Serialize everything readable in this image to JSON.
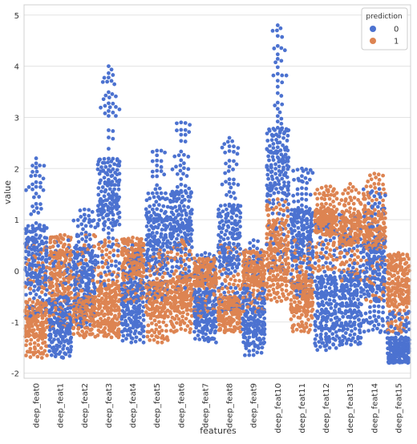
{
  "chart_data": {
    "type": "scatter",
    "subtype": "swarm",
    "xlabel": "features",
    "ylabel": "value",
    "categories": [
      "deep_feat0",
      "deep_feat1",
      "deep_feat2",
      "deep_feat3",
      "deep_feat4",
      "deep_feat5",
      "deep_feat6",
      "deep_feat7",
      "deep_feat8",
      "deep_feat9",
      "deep_feat10",
      "deep_feat11",
      "deep_feat12",
      "deep_feat13",
      "deep_feat14",
      "deep_feat15"
    ],
    "ylim": [
      -2.1,
      5.2
    ],
    "yticks": [
      -2,
      -1,
      0,
      1,
      2,
      3,
      4,
      5
    ],
    "grid": true,
    "legend": {
      "title": "prediction",
      "placement": "top-right",
      "entries": [
        {
          "label": "0",
          "color": "#4c72d0"
        },
        {
          "label": "1",
          "color": "#dd8452"
        }
      ]
    },
    "series": [
      {
        "name": "0",
        "color": "#4c72d0",
        "stats": [
          {
            "min": -0.9,
            "q1": -0.3,
            "median": 0.3,
            "q3": 0.9,
            "max": 2.2
          },
          {
            "min": -1.7,
            "q1": -1.4,
            "median": -1.0,
            "q3": -0.5,
            "max": 0.6
          },
          {
            "min": -1.1,
            "q1": -0.6,
            "median": 0.0,
            "q3": 0.5,
            "max": 1.2
          },
          {
            "min": -0.3,
            "q1": 0.8,
            "median": 1.5,
            "q3": 2.2,
            "max": 4.0
          },
          {
            "min": -1.4,
            "q1": -1.1,
            "median": -0.7,
            "q3": -0.2,
            "max": 0.5
          },
          {
            "min": -0.6,
            "q1": 0.0,
            "median": 0.7,
            "q3": 1.3,
            "max": 2.35
          },
          {
            "min": -0.4,
            "q1": 0.4,
            "median": 1.0,
            "q3": 1.6,
            "max": 2.9
          },
          {
            "min": -1.4,
            "q1": -1.1,
            "median": -0.8,
            "q3": -0.4,
            "max": 0.35
          },
          {
            "min": -0.8,
            "q1": 0.0,
            "median": 0.6,
            "q3": 1.3,
            "max": 2.6
          },
          {
            "min": -1.65,
            "q1": -1.3,
            "median": -0.9,
            "q3": -0.4,
            "max": 0.6
          },
          {
            "min": 0.0,
            "q1": 1.3,
            "median": 2.1,
            "q3": 2.8,
            "max": 4.8
          },
          {
            "min": -0.5,
            "q1": 0.2,
            "median": 0.7,
            "q3": 1.2,
            "max": 2.0
          },
          {
            "min": -1.55,
            "q1": -1.2,
            "median": -0.7,
            "q3": -0.1,
            "max": 0.9
          },
          {
            "min": -1.45,
            "q1": -1.1,
            "median": -0.6,
            "q3": 0.0,
            "max": 1.1
          },
          {
            "min": -1.2,
            "q1": -0.6,
            "median": 0.0,
            "q3": 0.6,
            "max": 1.6
          },
          {
            "min": -1.8,
            "q1": -1.75,
            "median": -1.6,
            "q3": -1.3,
            "max": -0.8
          }
        ]
      },
      {
        "name": "1",
        "color": "#dd8452",
        "stats": [
          {
            "min": -1.7,
            "q1": -1.3,
            "median": -1.0,
            "q3": -0.6,
            "max": 0.5
          },
          {
            "min": -1.1,
            "q1": -0.5,
            "median": 0.0,
            "q3": 0.4,
            "max": 0.7
          },
          {
            "min": -1.3,
            "q1": -1.0,
            "median": -0.8,
            "q3": -0.5,
            "max": 0.7
          },
          {
            "min": -1.3,
            "q1": -1.1,
            "median": -0.8,
            "q3": -0.2,
            "max": 0.6
          },
          {
            "min": -0.6,
            "q1": -0.1,
            "median": 0.2,
            "q3": 0.45,
            "max": 0.65
          },
          {
            "min": -1.4,
            "q1": -0.9,
            "median": -0.5,
            "q3": -0.2,
            "max": 0.4
          },
          {
            "min": -1.2,
            "q1": -0.8,
            "median": -0.5,
            "q3": -0.1,
            "max": 0.6
          },
          {
            "min": -0.9,
            "q1": -0.3,
            "median": 0.0,
            "q3": 0.1,
            "max": 0.25
          },
          {
            "min": -1.2,
            "q1": -1.0,
            "median": -0.8,
            "q3": -0.5,
            "max": 0.5
          },
          {
            "min": -0.8,
            "q1": -0.3,
            "median": 0.0,
            "q3": 0.2,
            "max": 0.4
          },
          {
            "min": -0.6,
            "q1": -0.2,
            "median": 0.3,
            "q3": 0.9,
            "max": 1.4
          },
          {
            "min": -1.2,
            "q1": -0.8,
            "median": -0.5,
            "q3": -0.1,
            "max": 0.6
          },
          {
            "min": 0.0,
            "q1": 0.7,
            "median": 1.0,
            "q3": 1.2,
            "max": 1.65
          },
          {
            "min": -0.2,
            "q1": 0.5,
            "median": 0.8,
            "q3": 1.1,
            "max": 1.7
          },
          {
            "min": -0.6,
            "q1": 0.4,
            "median": 0.8,
            "q3": 1.2,
            "max": 1.9
          },
          {
            "min": -1.2,
            "q1": -0.7,
            "median": -0.2,
            "q3": 0.1,
            "max": 0.35
          }
        ]
      }
    ]
  }
}
